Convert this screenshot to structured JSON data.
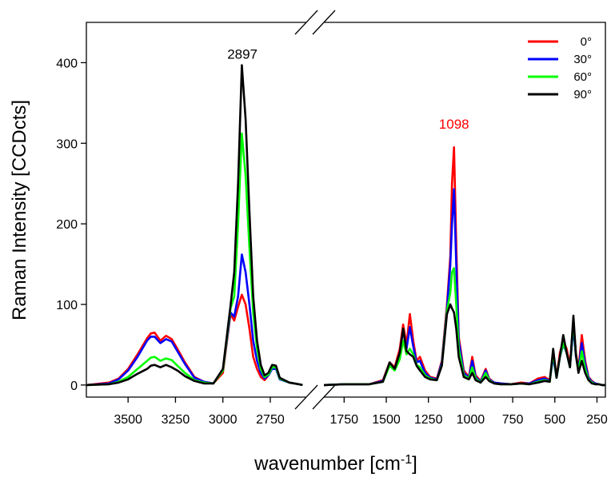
{
  "chart_data": {
    "type": "line",
    "title": "",
    "xlabel": "wavenumber [cm",
    "xlabel_sup": "-1",
    "xlabel_end": "]",
    "ylabel": "Raman Intensity [CCDcts]",
    "ylim": [
      -15,
      450
    ],
    "yticks": [
      "0",
      "100",
      "200",
      "300",
      "400"
    ],
    "ytick_values": [
      0,
      100,
      200,
      300,
      400
    ],
    "x_axis_broken": true,
    "x_reversed": true,
    "segments": [
      {
        "xlim": [
          3720,
          2560
        ],
        "ticks": [
          3500,
          3250,
          3000,
          2750
        ],
        "tick_labels": [
          "3500",
          "3250",
          "3000",
          "2750"
        ]
      },
      {
        "xlim": [
          1870,
          200
        ],
        "ticks": [
          1750,
          1500,
          1250,
          1000,
          750,
          500,
          250
        ],
        "tick_labels": [
          "1750",
          "1500",
          "1250",
          "1000",
          "750",
          "500",
          "250"
        ]
      }
    ],
    "legend": {
      "position": "top-right"
    },
    "annotations": [
      {
        "text": "2897",
        "x": 2897,
        "y": 405,
        "segment": 0,
        "color": "#000000"
      },
      {
        "text": "1098",
        "x": 1098,
        "y": 318,
        "segment": 1,
        "color": "#ff0000"
      }
    ],
    "series": [
      {
        "name": "0°",
        "color": "#ff0000",
        "segments": [
          {
            "x": [
              3720,
              3600,
              3550,
              3500,
              3450,
              3400,
              3380,
              3360,
              3330,
              3300,
              3270,
              3240,
              3200,
              3150,
              3100,
              3050,
              3000,
              2960,
              2940,
              2920,
              2900,
              2880,
              2860,
              2840,
              2820,
              2800,
              2780,
              2760,
              2740,
              2720,
              2700,
              2650,
              2600,
              2580
            ],
            "y": [
              0,
              3,
              8,
              20,
              38,
              58,
              64,
              65,
              55,
              61,
              57,
              45,
              28,
              10,
              4,
              2,
              15,
              88,
              80,
              97,
              112,
              100,
              70,
              35,
              20,
              10,
              6,
              12,
              22,
              22,
              8,
              3,
              1,
              0
            ]
          },
          {
            "x": [
              1870,
              1750,
              1600,
              1520,
              1480,
              1450,
              1420,
              1400,
              1380,
              1360,
              1340,
              1320,
              1300,
              1270,
              1240,
              1200,
              1170,
              1140,
              1120,
              1110,
              1098,
              1085,
              1070,
              1040,
              1010,
              990,
              970,
              940,
              910,
              890,
              860,
              820,
              760,
              700,
              650,
              600,
              560,
              530,
              510,
              490,
              470,
              450,
              430,
              410,
              390,
              375,
              360,
              340,
              320,
              300,
              280,
              260,
              240,
              220,
              200
            ],
            "y": [
              0,
              1,
              1,
              6,
              28,
              22,
              45,
              75,
              50,
              88,
              55,
              30,
              35,
              18,
              10,
              8,
              30,
              100,
              160,
              250,
              295,
              175,
              60,
              18,
              10,
              35,
              12,
              5,
              20,
              8,
              3,
              2,
              1,
              3,
              2,
              8,
              10,
              6,
              38,
              10,
              40,
              55,
              45,
              25,
              78,
              40,
              20,
              62,
              30,
              10,
              5,
              2,
              1,
              0,
              0
            ]
          }
        ]
      },
      {
        "name": "30°",
        "color": "#0000ff",
        "segments": [
          {
            "x": [
              3720,
              3600,
              3550,
              3500,
              3450,
              3400,
              3380,
              3360,
              3330,
              3300,
              3270,
              3240,
              3200,
              3150,
              3100,
              3050,
              3000,
              2960,
              2940,
              2920,
              2900,
              2880,
              2860,
              2840,
              2820,
              2800,
              2780,
              2760,
              2740,
              2720,
              2700,
              2650,
              2600,
              2580
            ],
            "y": [
              0,
              2,
              7,
              18,
              35,
              55,
              60,
              60,
              52,
              57,
              54,
              42,
              26,
              9,
              4,
              2,
              18,
              90,
              85,
              110,
              162,
              140,
              100,
              55,
              30,
              15,
              8,
              12,
              20,
              20,
              7,
              3,
              1,
              0
            ]
          },
          {
            "x": [
              1870,
              1750,
              1600,
              1520,
              1480,
              1450,
              1420,
              1400,
              1380,
              1360,
              1340,
              1320,
              1300,
              1270,
              1240,
              1200,
              1170,
              1140,
              1120,
              1110,
              1098,
              1085,
              1070,
              1040,
              1010,
              990,
              970,
              940,
              910,
              890,
              860,
              820,
              760,
              700,
              650,
              600,
              560,
              530,
              510,
              490,
              470,
              450,
              430,
              410,
              390,
              375,
              360,
              340,
              320,
              300,
              280,
              260,
              240,
              220,
              200
            ],
            "y": [
              0,
              1,
              1,
              5,
              26,
              20,
              40,
              68,
              45,
              72,
              48,
              28,
              30,
              15,
              9,
              7,
              28,
              95,
              150,
              200,
              243,
              150,
              55,
              15,
              9,
              30,
              10,
              4,
              18,
              7,
              3,
              2,
              1,
              2,
              2,
              6,
              8,
              5,
              35,
              9,
              35,
              50,
              40,
              22,
              72,
              36,
              18,
              52,
              26,
              9,
              4,
              2,
              1,
              0,
              0
            ]
          }
        ]
      },
      {
        "name": "60°",
        "color": "#00ff00",
        "segments": [
          {
            "x": [
              3720,
              3600,
              3550,
              3500,
              3450,
              3400,
              3380,
              3360,
              3330,
              3300,
              3270,
              3240,
              3200,
              3150,
              3100,
              3050,
              3000,
              2960,
              2940,
              2920,
              2900,
              2880,
              2860,
              2840,
              2820,
              2800,
              2780,
              2760,
              2740,
              2720,
              2700,
              2650,
              2600,
              2580
            ],
            "y": [
              0,
              1,
              4,
              10,
              20,
              30,
              34,
              35,
              30,
              33,
              31,
              24,
              15,
              6,
              3,
              2,
              18,
              95,
              110,
              200,
              312,
              260,
              170,
              90,
              45,
              20,
              10,
              13,
              22,
              22,
              8,
              3,
              1,
              0
            ]
          },
          {
            "x": [
              1870,
              1750,
              1600,
              1520,
              1480,
              1450,
              1420,
              1400,
              1380,
              1360,
              1340,
              1320,
              1300,
              1270,
              1240,
              1200,
              1170,
              1140,
              1120,
              1110,
              1098,
              1085,
              1070,
              1040,
              1010,
              990,
              970,
              940,
              910,
              890,
              860,
              820,
              760,
              700,
              650,
              600,
              560,
              530,
              510,
              490,
              470,
              450,
              430,
              410,
              390,
              375,
              360,
              340,
              320,
              300,
              280,
              260,
              240,
              220,
              200
            ],
            "y": [
              0,
              1,
              1,
              4,
              24,
              18,
              32,
              55,
              38,
              45,
              38,
              25,
              22,
              12,
              8,
              6,
              25,
              92,
              115,
              140,
              145,
              100,
              45,
              12,
              8,
              22,
              8,
              3,
              15,
              6,
              2,
              1,
              1,
              2,
              1,
              4,
              6,
              4,
              40,
              9,
              35,
              52,
              40,
              22,
              80,
              38,
              16,
              42,
              20,
              7,
              3,
              1,
              1,
              0,
              0
            ]
          }
        ]
      },
      {
        "name": "90°",
        "color": "#000000",
        "segments": [
          {
            "x": [
              3720,
              3600,
              3550,
              3500,
              3450,
              3400,
              3380,
              3360,
              3330,
              3300,
              3270,
              3240,
              3200,
              3150,
              3100,
              3050,
              3000,
              2960,
              2940,
              2920,
              2900,
              2880,
              2860,
              2840,
              2820,
              2800,
              2780,
              2760,
              2740,
              2720,
              2700,
              2650,
              2600,
              2580
            ],
            "y": [
              0,
              1,
              3,
              7,
              14,
              20,
              24,
              25,
              22,
              25,
              22,
              18,
              11,
              5,
              2,
              2,
              20,
              98,
              140,
              250,
              397,
              330,
              215,
              110,
              55,
              25,
              12,
              15,
              25,
              24,
              9,
              3,
              1,
              0
            ]
          },
          {
            "x": [
              1870,
              1750,
              1600,
              1520,
              1480,
              1450,
              1420,
              1400,
              1380,
              1360,
              1340,
              1320,
              1300,
              1270,
              1240,
              1200,
              1170,
              1140,
              1120,
              1110,
              1098,
              1085,
              1070,
              1040,
              1010,
              990,
              970,
              940,
              910,
              890,
              860,
              820,
              760,
              700,
              650,
              600,
              560,
              530,
              510,
              490,
              470,
              450,
              430,
              410,
              390,
              375,
              360,
              340,
              320,
              300,
              280,
              260,
              240,
              220,
              200
            ],
            "y": [
              0,
              1,
              1,
              4,
              28,
              20,
              40,
              70,
              42,
              38,
              35,
              24,
              18,
              10,
              7,
              6,
              24,
              88,
              100,
              95,
              90,
              70,
              35,
              10,
              7,
              15,
              6,
              3,
              10,
              5,
              2,
              1,
              1,
              2,
              1,
              3,
              5,
              4,
              45,
              9,
              35,
              62,
              40,
              22,
              86,
              38,
              15,
              30,
              15,
              6,
              2,
              1,
              1,
              0,
              0
            ]
          }
        ]
      }
    ]
  }
}
